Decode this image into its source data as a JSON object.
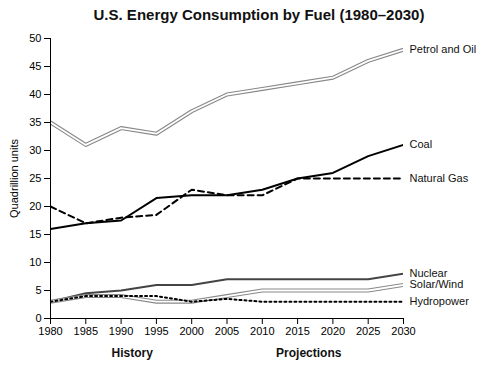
{
  "chart_data": {
    "type": "line",
    "title": "U.S. Energy Consumption by Fuel (1980–2030)",
    "y_label": "Quadrillion units",
    "annotations": [
      "History",
      "Projections"
    ],
    "x": [
      1980,
      1985,
      1990,
      1995,
      2000,
      2005,
      2010,
      2015,
      2020,
      2025,
      2030
    ],
    "xlim": [
      1980,
      2030
    ],
    "xticks": [
      1980,
      1985,
      1990,
      1995,
      2000,
      2005,
      2010,
      2015,
      2020,
      2025,
      2030
    ],
    "ylim": [
      0,
      50
    ],
    "yticks": [
      0,
      5,
      10,
      15,
      20,
      25,
      30,
      35,
      40,
      45,
      50
    ],
    "grid": false,
    "series": [
      {
        "name": "Petrol and Oil",
        "color": "#888888",
        "line_style": "double",
        "values": [
          35,
          31,
          34,
          33,
          37,
          40,
          41,
          42,
          43,
          46,
          48
        ]
      },
      {
        "name": "Coal",
        "color": "#000000",
        "line_style": "solid",
        "values": [
          16,
          17,
          17.5,
          21.5,
          22,
          22,
          23,
          25,
          26,
          29,
          31
        ]
      },
      {
        "name": "Natural Gas",
        "color": "#000000",
        "line_style": "dashed",
        "values": [
          20,
          17,
          18,
          18.5,
          23,
          22,
          22,
          25,
          25,
          25,
          25
        ]
      },
      {
        "name": "Nuclear",
        "color": "#444444",
        "line_style": "solid",
        "values": [
          3,
          4.5,
          5,
          6,
          6,
          7,
          7,
          7,
          7,
          7,
          8
        ]
      },
      {
        "name": "Solar/Wind",
        "color": "#888888",
        "line_style": "double",
        "values": [
          3,
          4,
          4,
          3,
          3,
          4,
          5,
          5,
          5,
          5,
          6
        ]
      },
      {
        "name": "Hydropower",
        "color": "#000000",
        "line_style": "dotted",
        "values": [
          3,
          4,
          4,
          4,
          3,
          3.5,
          3,
          3,
          3,
          3,
          3
        ]
      }
    ]
  }
}
